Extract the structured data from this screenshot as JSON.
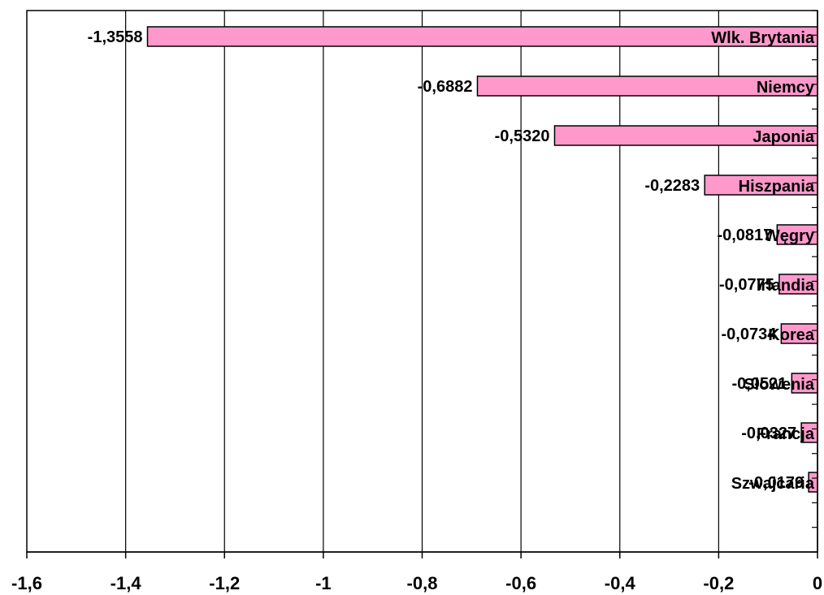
{
  "chart_data": {
    "type": "bar",
    "orientation": "horizontal",
    "title": "",
    "xlabel": "",
    "ylabel": "",
    "xlim": [
      -1.6,
      0
    ],
    "x_ticks": [
      -1.6,
      -1.4,
      -1.2,
      -1,
      -0.8,
      -0.6,
      -0.4,
      -0.2,
      0
    ],
    "x_tick_labels": [
      "-1,6",
      "-1,4",
      "-1,2",
      "-1",
      "-0,8",
      "-0,6",
      "-0,4",
      "-0,2",
      "0"
    ],
    "grid": "vertical",
    "legend": "none",
    "categories": [
      "Wlk. Brytania",
      "Niemcy",
      "Japonia",
      "Hiszpania",
      "Węgry",
      "Irlandia",
      "Korea",
      "Słowenia",
      "Francja",
      "Szwajcaria"
    ],
    "values": [
      -1.3558,
      -0.6882,
      -0.532,
      -0.2283,
      -0.0817,
      -0.0775,
      -0.0734,
      -0.0521,
      -0.0327,
      -0.0179
    ],
    "value_labels": [
      "-1,3558",
      "-0,6882",
      "-0,5320",
      "-0,2283",
      "-0,0817",
      "-0,0775",
      "-0,0734",
      "-0,0521",
      "-0,0327",
      "-0,0179"
    ],
    "colors": {
      "bar_fill": "#FF99CC",
      "bar_stroke": "#000000",
      "grid": "#000000",
      "background": "#FFFFFF"
    }
  }
}
